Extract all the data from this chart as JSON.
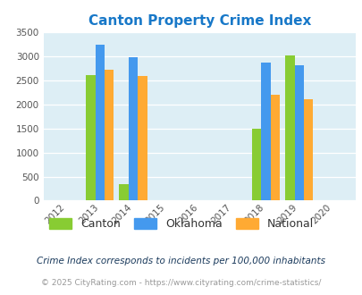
{
  "title": "Canton Property Crime Index",
  "title_color": "#1878c8",
  "years": [
    2012,
    2013,
    2014,
    2015,
    2016,
    2017,
    2018,
    2019,
    2020
  ],
  "data": {
    "2013": {
      "canton": 2620,
      "oklahoma": 3250,
      "national": 2720
    },
    "2014": {
      "canton": 340,
      "oklahoma": 2990,
      "national": 2590
    },
    "2018": {
      "canton": 1500,
      "oklahoma": 2870,
      "national": 2200
    },
    "2019": {
      "canton": 3030,
      "oklahoma": 2820,
      "national": 2110
    }
  },
  "bar_width": 0.28,
  "canton_color": "#88cc33",
  "oklahoma_color": "#4499ee",
  "national_color": "#ffaa33",
  "bg_color": "#ddeef5",
  "ylim": [
    0,
    3500
  ],
  "yticks": [
    0,
    500,
    1000,
    1500,
    2000,
    2500,
    3000,
    3500
  ],
  "tick_color": "#555555",
  "legend_labels": [
    "Canton",
    "Oklahoma",
    "National"
  ],
  "legend_text_color": "#333333",
  "footnote1": "Crime Index corresponds to incidents per 100,000 inhabitants",
  "footnote2": "© 2025 CityRating.com - https://www.cityrating.com/crime-statistics/",
  "footnote1_color": "#1a3a5c",
  "footnote2_color": "#999999"
}
